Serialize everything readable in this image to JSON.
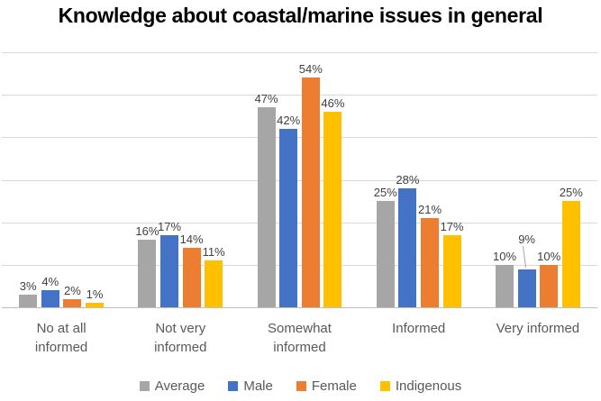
{
  "title": "Knowledge about coastal/marine issues in general",
  "chart_data": {
    "type": "bar",
    "title": "Knowledge about coastal/marine issues in general",
    "categories": [
      "No at all informed",
      "Not very informed",
      "Somewhat informed",
      "Informed",
      "Very informed"
    ],
    "category_label_lines": [
      [
        "No at all",
        "informed"
      ],
      [
        "Not very",
        "informed"
      ],
      [
        "Somewhat",
        "informed"
      ],
      [
        "Informed"
      ],
      [
        "Very informed"
      ]
    ],
    "series": [
      {
        "name": "Average",
        "color": "#A6A6A6",
        "values": [
          3,
          16,
          47,
          25,
          10
        ]
      },
      {
        "name": "Male",
        "color": "#4472C4",
        "values": [
          4,
          17,
          42,
          28,
          9
        ]
      },
      {
        "name": "Female",
        "color": "#ED7D31",
        "values": [
          2,
          14,
          54,
          21,
          10
        ]
      },
      {
        "name": "Indigenous",
        "color": "#FFC000",
        "values": [
          1,
          11,
          46,
          17,
          25
        ]
      }
    ],
    "value_suffix": "%",
    "data_labels": true,
    "xlabel": "",
    "ylabel": "",
    "ylim": [
      0,
      60
    ],
    "grid_step": 10,
    "grid": true,
    "y_axis_labels_visible": false,
    "legend_position": "bottom",
    "grid_color": "#D9D9D9",
    "axis_color": "#BFBFBF",
    "label_color": "#404040",
    "category_text_color": "#595959",
    "label_callouts": [
      {
        "category_index": 4,
        "series_index": 1,
        "dy": -24,
        "leader_line": true
      }
    ]
  }
}
